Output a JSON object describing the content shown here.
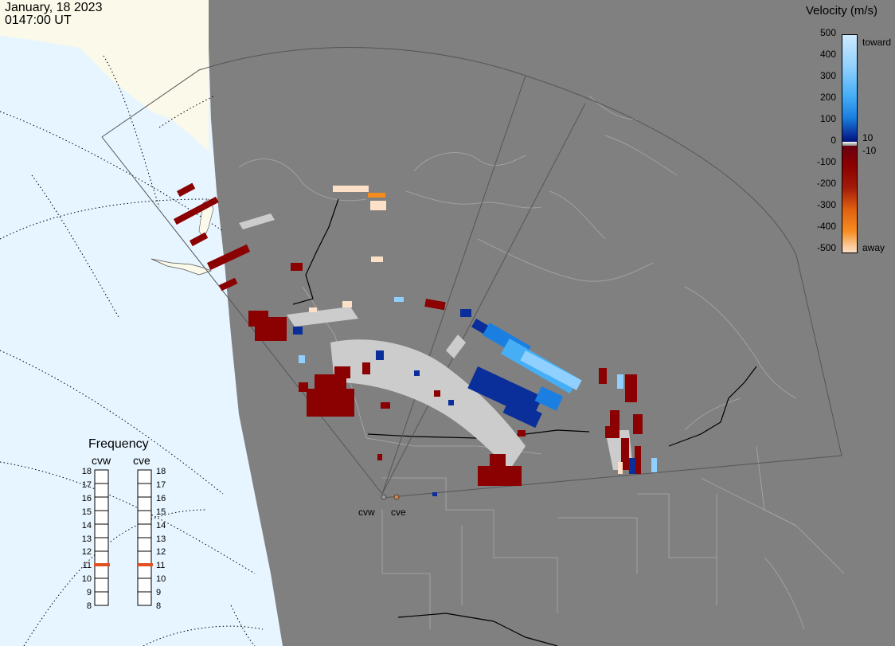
{
  "header": {
    "date": "January, 18 2023",
    "time": "0147:00 UT"
  },
  "legend": {
    "title": "Velocity (m/s)",
    "ticks": [
      "500",
      "400",
      "300",
      "200",
      "100",
      "0",
      "-100",
      "-200",
      "-300",
      "-400",
      "-500"
    ],
    "toward_label": "toward",
    "away_label": "away",
    "pos_threshold": "10",
    "neg_threshold": "-10",
    "colors": [
      "#cfeaff",
      "#8fd0ff",
      "#46aef5",
      "#1a7fe0",
      "#1050c0",
      "#0a2e9a",
      "#00147a",
      "#6a0010",
      "#8b0000",
      "#a31a0a",
      "#c03a10",
      "#e06010",
      "#f58c20",
      "#fbc38a",
      "#fde0c8"
    ]
  },
  "frequency": {
    "title": "Frequency",
    "radars": [
      {
        "name": "cvw",
        "selected_mhz": 11
      },
      {
        "name": "cve",
        "selected_mhz": 11
      }
    ],
    "scale_mhz": [
      "18",
      "17",
      "16",
      "15",
      "14",
      "13",
      "12",
      "11",
      "10",
      "9",
      "8"
    ]
  },
  "sites": [
    {
      "label": "cvw"
    },
    {
      "label": "cve"
    }
  ],
  "colors": {
    "ocean": "#e6f5ff",
    "land_day": "#fbfaea",
    "night": "#808080",
    "grid_gray": "#cccccc",
    "selected_freq": "#e05020"
  },
  "icons": {
    "site_marker": "radar-site-icon"
  }
}
